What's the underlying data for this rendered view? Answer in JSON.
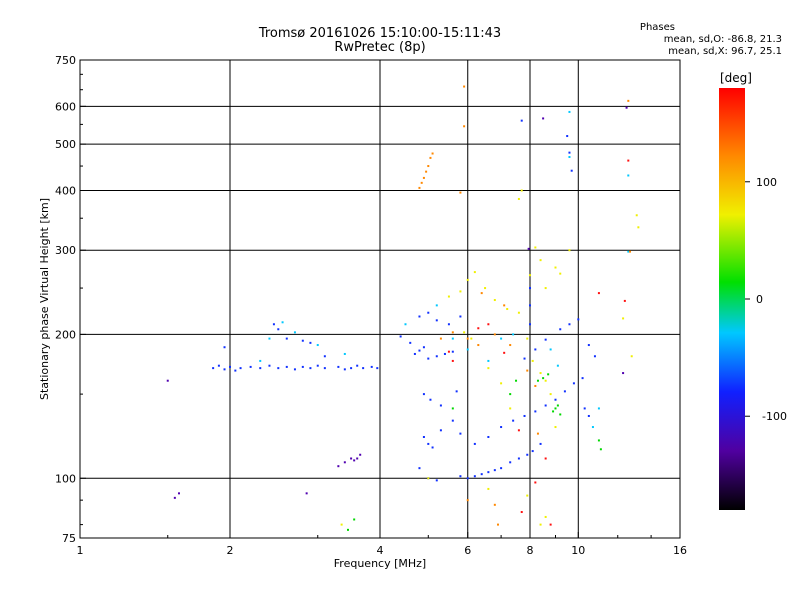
{
  "title": "Tromsø 20161026 15:10:00-15:11:43",
  "subtitle": "RwPretec (8p)",
  "stats": {
    "heading": "Phases",
    "line_o": "mean, sd,O: -86.8, 21.3",
    "line_x": "mean, sd,X:  96.7, 25.1"
  },
  "chart_data": {
    "type": "scatter",
    "xlabel": "Frequency [MHz]",
    "ylabel": "Stationary phase Virtual Height [km]",
    "x_scale": "log",
    "y_scale": "log",
    "xlim": [
      1,
      16
    ],
    "ylim": [
      75,
      750
    ],
    "x_ticks": [
      1,
      2,
      4,
      6,
      8,
      10,
      16
    ],
    "y_ticks": [
      75,
      100,
      200,
      300,
      400,
      500,
      600,
      750
    ],
    "x_grid": [
      2,
      4,
      6,
      8,
      10
    ],
    "y_grid": [
      100,
      200,
      300,
      400,
      500,
      600
    ],
    "colorbar": {
      "label": "[deg]",
      "range": [
        -180,
        180
      ],
      "ticks": [
        100,
        0,
        -100
      ]
    },
    "series": [
      {
        "color": "#1030ff",
        "points": [
          [
            1.85,
            170
          ],
          [
            1.9,
            172
          ],
          [
            1.95,
            169
          ],
          [
            2.0,
            171
          ],
          [
            2.05,
            168
          ],
          [
            2.1,
            170
          ],
          [
            2.2,
            171
          ],
          [
            2.3,
            170
          ],
          [
            2.4,
            172
          ],
          [
            2.5,
            170
          ],
          [
            2.6,
            171
          ],
          [
            2.7,
            169
          ],
          [
            2.8,
            171
          ],
          [
            2.9,
            170
          ],
          [
            3.0,
            172
          ],
          [
            3.1,
            170
          ],
          [
            3.3,
            171
          ],
          [
            3.4,
            169
          ],
          [
            3.5,
            170
          ],
          [
            3.6,
            172
          ],
          [
            3.7,
            170
          ],
          [
            3.85,
            171
          ],
          [
            3.95,
            170
          ],
          [
            1.95,
            188
          ],
          [
            2.45,
            210
          ],
          [
            2.5,
            205
          ],
          [
            2.6,
            196
          ],
          [
            2.8,
            194
          ],
          [
            2.9,
            192
          ],
          [
            3.1,
            180
          ],
          [
            4.4,
            198
          ],
          [
            4.6,
            192
          ],
          [
            4.7,
            182
          ],
          [
            4.8,
            185
          ],
          [
            4.9,
            188
          ],
          [
            5.0,
            178
          ],
          [
            5.2,
            180
          ],
          [
            5.4,
            182
          ],
          [
            5.6,
            184
          ],
          [
            4.8,
            218
          ],
          [
            5.0,
            222
          ],
          [
            5.2,
            214
          ],
          [
            5.5,
            210
          ],
          [
            5.8,
            218
          ],
          [
            4.9,
            150
          ],
          [
            5.05,
            146
          ],
          [
            5.3,
            142
          ],
          [
            5.7,
            152
          ],
          [
            4.9,
            122
          ],
          [
            5.0,
            118
          ],
          [
            5.1,
            116
          ],
          [
            5.3,
            126
          ],
          [
            5.6,
            132
          ],
          [
            5.8,
            124
          ],
          [
            4.8,
            105
          ],
          [
            5.0,
            100
          ],
          [
            5.2,
            99
          ],
          [
            5.8,
            101
          ],
          [
            6.0,
            100
          ],
          [
            6.2,
            101
          ],
          [
            6.4,
            102
          ],
          [
            6.6,
            103
          ],
          [
            6.8,
            104
          ],
          [
            7.0,
            105
          ],
          [
            7.3,
            108
          ],
          [
            7.6,
            110
          ],
          [
            7.9,
            112
          ],
          [
            8.1,
            114
          ],
          [
            8.4,
            118
          ],
          [
            6.2,
            118
          ],
          [
            6.6,
            122
          ],
          [
            7.0,
            128
          ],
          [
            7.4,
            132
          ],
          [
            7.8,
            135
          ],
          [
            8.2,
            138
          ],
          [
            8.6,
            142
          ],
          [
            9.0,
            146
          ],
          [
            9.4,
            152
          ],
          [
            9.8,
            158
          ],
          [
            10.2,
            162
          ],
          [
            7.8,
            178
          ],
          [
            8.2,
            186
          ],
          [
            8.6,
            195
          ],
          [
            9.2,
            205
          ],
          [
            9.6,
            210
          ],
          [
            10.0,
            215
          ],
          [
            9.5,
            520
          ],
          [
            9.6,
            480
          ],
          [
            9.7,
            440
          ],
          [
            7.7,
            560
          ],
          [
            8.0,
            210
          ],
          [
            8.0,
            230
          ],
          [
            8.0,
            250
          ],
          [
            10.5,
            190
          ],
          [
            10.8,
            180
          ],
          [
            10.3,
            140
          ],
          [
            10.5,
            135
          ]
        ]
      },
      {
        "color": "#00c8ff",
        "points": [
          [
            2.3,
            176
          ],
          [
            2.4,
            196
          ],
          [
            2.55,
            212
          ],
          [
            2.7,
            202
          ],
          [
            3.0,
            190
          ],
          [
            3.4,
            182
          ],
          [
            4.5,
            210
          ],
          [
            5.2,
            230
          ],
          [
            5.6,
            196
          ],
          [
            6.0,
            186
          ],
          [
            6.6,
            176
          ],
          [
            7.0,
            196
          ],
          [
            7.4,
            200
          ],
          [
            8.8,
            186
          ],
          [
            9.1,
            172
          ],
          [
            9.6,
            584
          ],
          [
            9.6,
            470
          ],
          [
            12.6,
            298
          ],
          [
            12.6,
            430
          ],
          [
            10.7,
            128
          ],
          [
            11.0,
            140
          ]
        ]
      },
      {
        "color": "#00d800",
        "points": [
          [
            8.3,
            160
          ],
          [
            8.5,
            162
          ],
          [
            8.7,
            165
          ],
          [
            8.9,
            138
          ],
          [
            9.0,
            140
          ],
          [
            9.1,
            142
          ],
          [
            9.2,
            136
          ],
          [
            7.3,
            150
          ],
          [
            7.5,
            160
          ],
          [
            11.0,
            120
          ],
          [
            11.1,
            115
          ],
          [
            3.55,
            82
          ],
          [
            3.45,
            78
          ],
          [
            5.6,
            140
          ]
        ]
      },
      {
        "color": "#f0f000",
        "points": [
          [
            5.5,
            240
          ],
          [
            5.8,
            246
          ],
          [
            6.0,
            260
          ],
          [
            6.2,
            270
          ],
          [
            6.5,
            250
          ],
          [
            6.8,
            236
          ],
          [
            7.2,
            226
          ],
          [
            7.6,
            222
          ],
          [
            8.0,
            266
          ],
          [
            8.2,
            304
          ],
          [
            8.4,
            286
          ],
          [
            8.6,
            250
          ],
          [
            9.0,
            276
          ],
          [
            9.2,
            268
          ],
          [
            9.6,
            300
          ],
          [
            7.9,
            196
          ],
          [
            8.1,
            176
          ],
          [
            8.4,
            166
          ],
          [
            8.6,
            160
          ],
          [
            8.8,
            150
          ],
          [
            9.0,
            128
          ],
          [
            7.3,
            140
          ],
          [
            7.0,
            158
          ],
          [
            6.6,
            170
          ],
          [
            5.9,
            202
          ],
          [
            6.1,
            196
          ],
          [
            7.6,
            384
          ],
          [
            7.7,
            400
          ],
          [
            13.1,
            355
          ],
          [
            13.2,
            335
          ],
          [
            5.0,
            100
          ],
          [
            6.6,
            95
          ],
          [
            7.9,
            92
          ],
          [
            8.4,
            80
          ],
          [
            8.6,
            83
          ],
          [
            3.35,
            80
          ],
          [
            12.8,
            180
          ],
          [
            12.3,
            216
          ]
        ]
      },
      {
        "color": "#ff8800",
        "points": [
          [
            4.8,
            405
          ],
          [
            4.85,
            415
          ],
          [
            4.9,
            425
          ],
          [
            4.95,
            438
          ],
          [
            5.0,
            450
          ],
          [
            5.05,
            468
          ],
          [
            5.1,
            478
          ],
          [
            5.9,
            660
          ],
          [
            5.9,
            545
          ],
          [
            5.8,
            396
          ],
          [
            5.3,
            196
          ],
          [
            5.6,
            202
          ],
          [
            6.0,
            196
          ],
          [
            6.3,
            190
          ],
          [
            6.8,
            200
          ],
          [
            7.3,
            190
          ],
          [
            7.9,
            168
          ],
          [
            8.2,
            156
          ],
          [
            6.4,
            244
          ],
          [
            7.1,
            230
          ],
          [
            8.3,
            124
          ],
          [
            12.6,
            616
          ],
          [
            12.7,
            298
          ],
          [
            6.0,
            90
          ],
          [
            6.8,
            88
          ],
          [
            6.9,
            80
          ]
        ]
      },
      {
        "color": "#ff1010",
        "points": [
          [
            5.6,
            176
          ],
          [
            6.3,
            206
          ],
          [
            6.6,
            210
          ],
          [
            7.1,
            183
          ],
          [
            7.6,
            126
          ],
          [
            8.2,
            98
          ],
          [
            8.6,
            110
          ],
          [
            12.6,
            462
          ],
          [
            12.4,
            235
          ],
          [
            11.0,
            244
          ],
          [
            5.5,
            184
          ],
          [
            7.7,
            85
          ],
          [
            8.8,
            80
          ]
        ]
      },
      {
        "color": "#5000b0",
        "points": [
          [
            3.3,
            106
          ],
          [
            3.4,
            108
          ],
          [
            3.5,
            110
          ],
          [
            3.55,
            109
          ],
          [
            3.6,
            110
          ],
          [
            3.65,
            112
          ],
          [
            1.55,
            91
          ],
          [
            1.58,
            93
          ],
          [
            1.5,
            160
          ],
          [
            2.85,
            93
          ],
          [
            7.95,
            302
          ],
          [
            12.5,
            596
          ],
          [
            12.3,
            166
          ],
          [
            8.5,
            566
          ]
        ]
      }
    ]
  }
}
